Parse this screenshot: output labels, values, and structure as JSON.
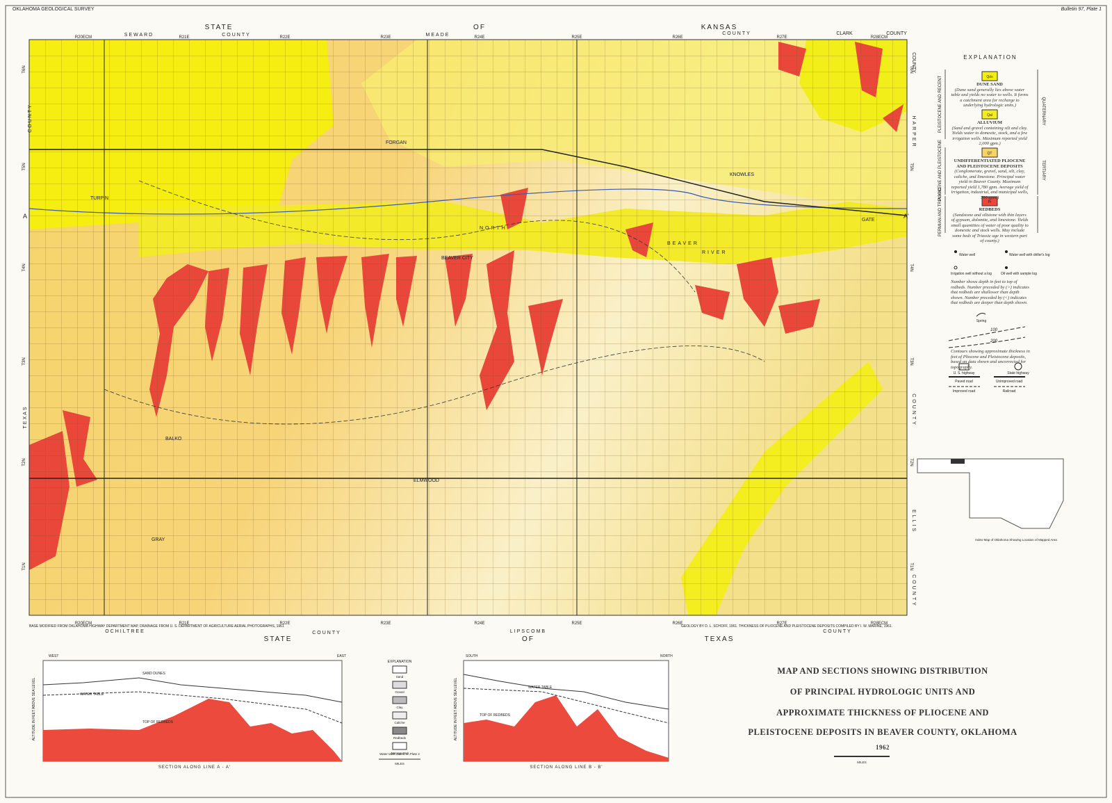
{
  "header": {
    "left": "OKLAHOMA GEOLOGICAL SURVEY",
    "right": "Bulletin 97, Plate 1"
  },
  "borders": {
    "top": {
      "state": "STATE",
      "of": "OF",
      "kansas": "KANSAS",
      "county_left": "COUNTY",
      "county_right": "COUNTY",
      "seward": "SEWARD",
      "meade": "MEADE",
      "clark": "CLARK",
      "clark_county": "COUNTY"
    },
    "bottom": {
      "state": "STATE",
      "of": "OF",
      "texas": "TEXAS",
      "county_left": "COUNTY",
      "county_right": "COUNTY",
      "ochiltree": "OCHILTREE",
      "lipscomb": "LIPSCOMB"
    },
    "left": {
      "county": "COUNTY",
      "texas": "TEXAS"
    },
    "right": {
      "harper": "HARPER",
      "county_top": "COUNTY",
      "county_mid": "COUNTY",
      "ellis": "ELLIS",
      "county_bottom": "COUNTY"
    },
    "ranges": [
      "R20ECM",
      "R21E",
      "R22E",
      "R23E",
      "R24E",
      "R25E",
      "R26E",
      "R27E",
      "R28ECM"
    ],
    "townships": [
      "T6N",
      "T5N",
      "T4N",
      "T3N",
      "T2N",
      "T1N"
    ]
  },
  "places": {
    "towns": [
      "TURPIN",
      "FORGAN",
      "BEAVER CITY",
      "KNOWLES",
      "GATE",
      "BALKO",
      "GRAY",
      "ELMWOOD"
    ],
    "river": [
      "NORTH",
      "BEAVER",
      "RIVER"
    ],
    "line_a": "A",
    "line_a2": "A'"
  },
  "legend": {
    "title": "EXPLANATION",
    "units": [
      {
        "symbol": "Qds",
        "name": "DUNE SAND",
        "description": "(Dune sand generally lies above water table and yields no water to wells. It forms a catchment area for recharge to underlying hydrologic units.)"
      },
      {
        "symbol": "Qal",
        "name": "ALLUVIUM",
        "description": "(Sand and gravel containing silt and clay. Yields water to domestic, stock, and a few irrigation wells. Maximum reported yield 2,000 gpm.)"
      },
      {
        "symbol": "QT",
        "name": "UNDIFFERENTIATED PLIOCENE AND PLEISTOCENE DEPOSITS",
        "description": "(Conglomerate, gravel, sand, silt, clay, caliche, and limestone. Principal water yield in Beaver County. Maximum reported yield 1,780 gpm. Average yield of irrigation, industrial, and municipal wells, 700 gpm.)"
      },
      {
        "symbol": "Pr",
        "name": "REDBEDS",
        "description": "(Sandstone and siltstone with thin layers of gypsum, dolomite, and limestone. Yields small quantities of water of poor quality to domestic and stock wells. May include some beds of Triassic age in western part of county.)"
      }
    ],
    "ages": [
      "PLEISTOCENE AND RECENT",
      "PLIOCENE AND PLEISTOCENE",
      "PERMIAN AND TRIASSIC"
    ],
    "systems": [
      "QUATERNARY",
      "TERTIARY"
    ],
    "symbols": {
      "water_well": "Water well",
      "driller_log": "Water well with driller's log",
      "irrigation": "Irrigation well without a log",
      "oil_well": "Oil well with sample log",
      "depth_note": "Number shows depth in feet to top of redbeds. Number preceded by (>) indicates that redbeds are shallower than depth shown. Number preceded by (<) indicates that redbeds are deeper than depth shown.",
      "spring": "Spring",
      "contour_100": "100",
      "contour_200": "200",
      "contour_note": "Contours showing approximate thickness in feet of Pliocene and Pleistocene deposits, based on data shown and uncorrected for topography.",
      "us_highway": "U. S. highway",
      "state_highway": "State highway",
      "paved": "Paved road",
      "unimproved": "Unimproved road",
      "improved": "Improved road",
      "railroad": "Railroad"
    },
    "index_caption": "Index Map of Oklahoma Showing Location of Mapped Area"
  },
  "credits": {
    "base": "BASE MODIFIED FROM OKLAHOMA HIGHWAY DEPARTMENT MAP, DRAINAGE FROM U. S. DEPARTMENT OF AGRICULTURE AERIAL PHOTOGRAPHS, 1961",
    "geology": "GEOLOGY BY D. L. SCHOFF, 1961. THICKNESS OF PLIOCENE AND PLEISTOCENE DEPOSITS COMPILED BY I. W. MARINE, 1961."
  },
  "sections": {
    "a": {
      "caption": "SECTION ALONG LINE A - A'",
      "west": "WEST",
      "east": "EAST",
      "water_table": "WATER TABLE",
      "sand_dunes": "SAND DUNES",
      "top_redbeds": "TOP OF REDBEDS",
      "axis": "ALTITUDE IN FEET ABOVE SEA LEVEL"
    },
    "b": {
      "caption": "SECTION ALONG LINE B - B'",
      "south": "SOUTH",
      "north": "NORTH",
      "water_table": "WATER TABLE",
      "top_redbeds": "TOP OF REDBEDS",
      "axis": "ALTITUDE IN FEET ABOVE SEA LEVEL"
    },
    "explanation": {
      "title": "EXPLANATION",
      "items": [
        "Sand",
        "Gravel",
        "Clay",
        "Caliche",
        "Redbeds",
        "Not reported"
      ],
      "note": "Water table based on Plate 2",
      "miles": "MILES"
    }
  },
  "title_block": {
    "lines": [
      "MAP AND SECTIONS SHOWING DISTRIBUTION",
      "OF PRINCIPAL HYDROLOGIC UNITS AND",
      "APPROXIMATE THICKNESS OF PLIOCENE AND",
      "PLEISTOCENE DEPOSITS IN BEAVER COUNTY, OKLAHOMA"
    ],
    "year": "1962",
    "miles": "MILES"
  }
}
